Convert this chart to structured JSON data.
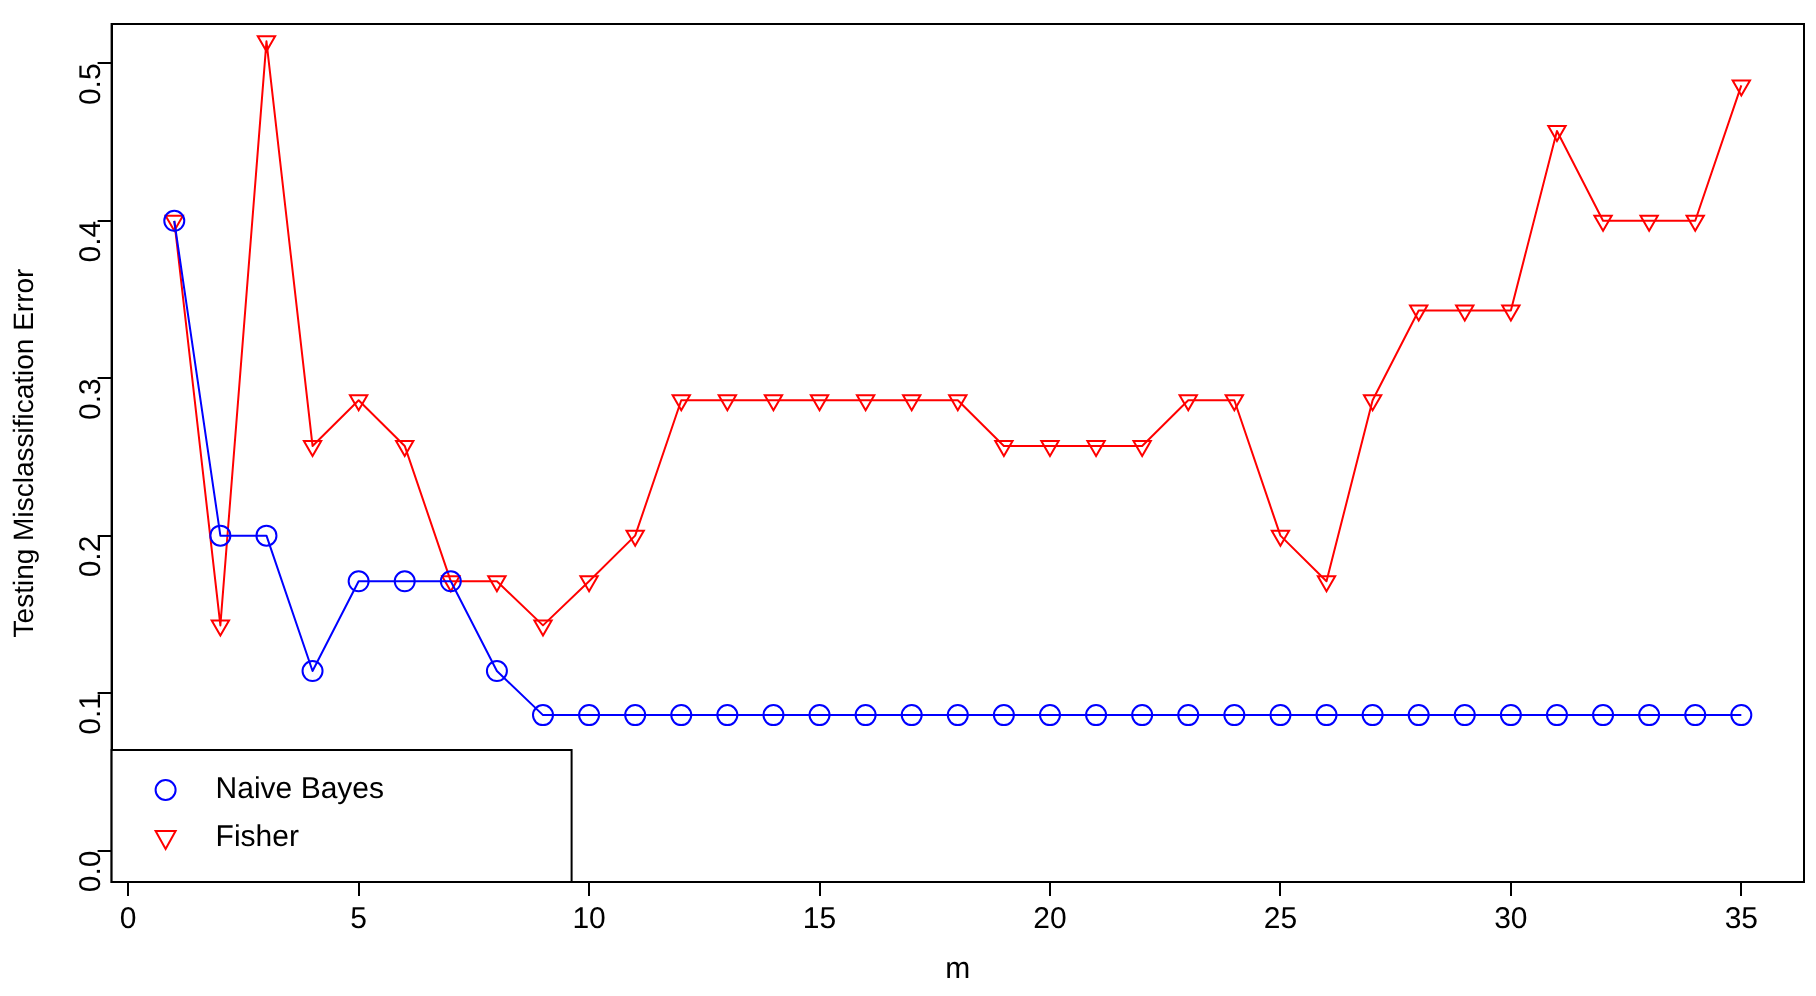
{
  "chart_data": {
    "type": "line",
    "xlabel": "m",
    "ylabel": "Testing Misclassification Error",
    "x": [
      1,
      2,
      3,
      4,
      5,
      6,
      7,
      8,
      9,
      10,
      11,
      12,
      13,
      14,
      15,
      16,
      17,
      18,
      19,
      20,
      21,
      22,
      23,
      24,
      25,
      26,
      27,
      28,
      29,
      30,
      31,
      32,
      33,
      34,
      35
    ],
    "series": [
      {
        "name": "Naive Bayes",
        "color": "#0000ff",
        "marker": "circle",
        "values": [
          0.4,
          0.2,
          0.2,
          0.114,
          0.171,
          0.171,
          0.171,
          0.114,
          0.086,
          0.086,
          0.086,
          0.086,
          0.086,
          0.086,
          0.086,
          0.086,
          0.086,
          0.086,
          0.086,
          0.086,
          0.086,
          0.086,
          0.086,
          0.086,
          0.086,
          0.086,
          0.086,
          0.086,
          0.086,
          0.086,
          0.086,
          0.086,
          0.086,
          0.086,
          0.086
        ]
      },
      {
        "name": "Fisher",
        "color": "#ff0000",
        "marker": "triangle",
        "values": [
          0.4,
          0.143,
          0.514,
          0.257,
          0.286,
          0.257,
          0.171,
          0.171,
          0.143,
          0.171,
          0.2,
          0.286,
          0.286,
          0.286,
          0.286,
          0.286,
          0.286,
          0.286,
          0.257,
          0.257,
          0.257,
          0.257,
          0.286,
          0.286,
          0.2,
          0.171,
          0.286,
          0.343,
          0.343,
          0.343,
          0.457,
          0.4,
          0.4,
          0.4,
          0.486
        ]
      }
    ],
    "xlim": [
      -0.36,
      36.36
    ],
    "xticks": [
      0,
      5,
      10,
      15,
      20,
      25,
      30,
      35
    ],
    "ylim": [
      -0.02,
      0.525
    ],
    "yticks": [
      {
        "value": 0,
        "label": "0.0"
      },
      0.1,
      0.2,
      0.3,
      0.4,
      0.5
    ],
    "legend": "bottom left"
  }
}
